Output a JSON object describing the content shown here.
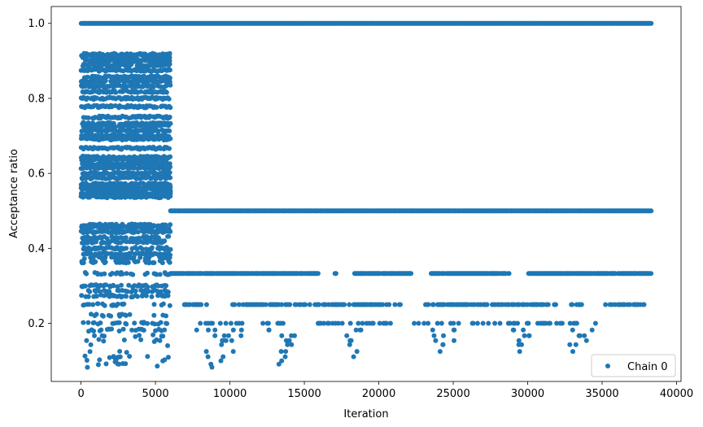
{
  "chart_data": {
    "type": "scatter",
    "xlabel": "Iteration",
    "ylabel": "Acceptance ratio",
    "xlim": [
      -2000,
      40300
    ],
    "ylim": [
      0.045,
      1.045
    ],
    "xticks": [
      0,
      5000,
      10000,
      15000,
      20000,
      25000,
      30000,
      35000,
      40000
    ],
    "xtick_labels": [
      "0",
      "5000",
      "10000",
      "15000",
      "20000",
      "25000",
      "30000",
      "35000",
      "40000"
    ],
    "yticks": [
      0.2,
      0.4,
      0.6,
      0.8,
      1.0
    ],
    "ytick_labels": [
      "0.2",
      "0.4",
      "0.6",
      "0.8",
      "1.0"
    ],
    "grid": false,
    "legend_placement": "lower-right",
    "series": [
      {
        "name": "Chain 0",
        "color": "#1f77b4",
        "marker": "circle",
        "segments": [
          {
            "x_range": [
              0,
              38300
            ],
            "y": 1.0,
            "density": "continuous"
          },
          {
            "x_range": [
              6000,
              38300
            ],
            "y": 0.5,
            "density": "continuous"
          },
          {
            "x_range": [
              6000,
              38300
            ],
            "y": 0.333,
            "density": "mostly-continuous"
          },
          {
            "x_range": [
              6800,
              38300
            ],
            "y": 0.25,
            "density": "intermittent"
          },
          {
            "x_range": [
              7800,
              35800
            ],
            "y": 0.2,
            "density": "sparse"
          }
        ],
        "early_phase": {
          "x_range": [
            0,
            6000
          ],
          "y_levels": [
            0.9,
            0.917,
            0.909,
            0.889,
            0.875,
            0.857,
            0.846,
            0.833,
            0.818,
            0.8,
            0.778,
            0.75,
            0.733,
            0.727,
            0.714,
            0.7,
            0.692,
            0.667,
            0.643,
            0.636,
            0.625,
            0.615,
            0.6,
            0.588,
            0.571,
            0.563,
            0.556,
            0.545,
            0.538,
            0.462,
            0.455,
            0.444,
            0.429,
            0.417,
            0.4,
            0.385,
            0.375,
            0.364,
            0.333,
            0.3,
            0.286,
            0.273,
            0.25,
            0.222,
            0.2,
            0.182,
            0.167,
            0.154,
            0.143,
            0.125,
            0.111,
            0.1,
            0.091,
            0.083
          ]
        },
        "low_clusters": [
          {
            "x_range": [
              7500,
              11000
            ],
            "y_min": 0.08
          },
          {
            "x_range": [
              12500,
              14500
            ],
            "y_min": 0.085
          },
          {
            "x_range": [
              17500,
              19300
            ],
            "y_min": 0.111
          },
          {
            "x_range": [
              23500,
              25500
            ],
            "y_min": 0.111
          },
          {
            "x_range": [
              28500,
              31000
            ],
            "y_min": 0.125
          },
          {
            "x_range": [
              32000,
              34500
            ],
            "y_min": 0.125
          }
        ]
      }
    ]
  }
}
